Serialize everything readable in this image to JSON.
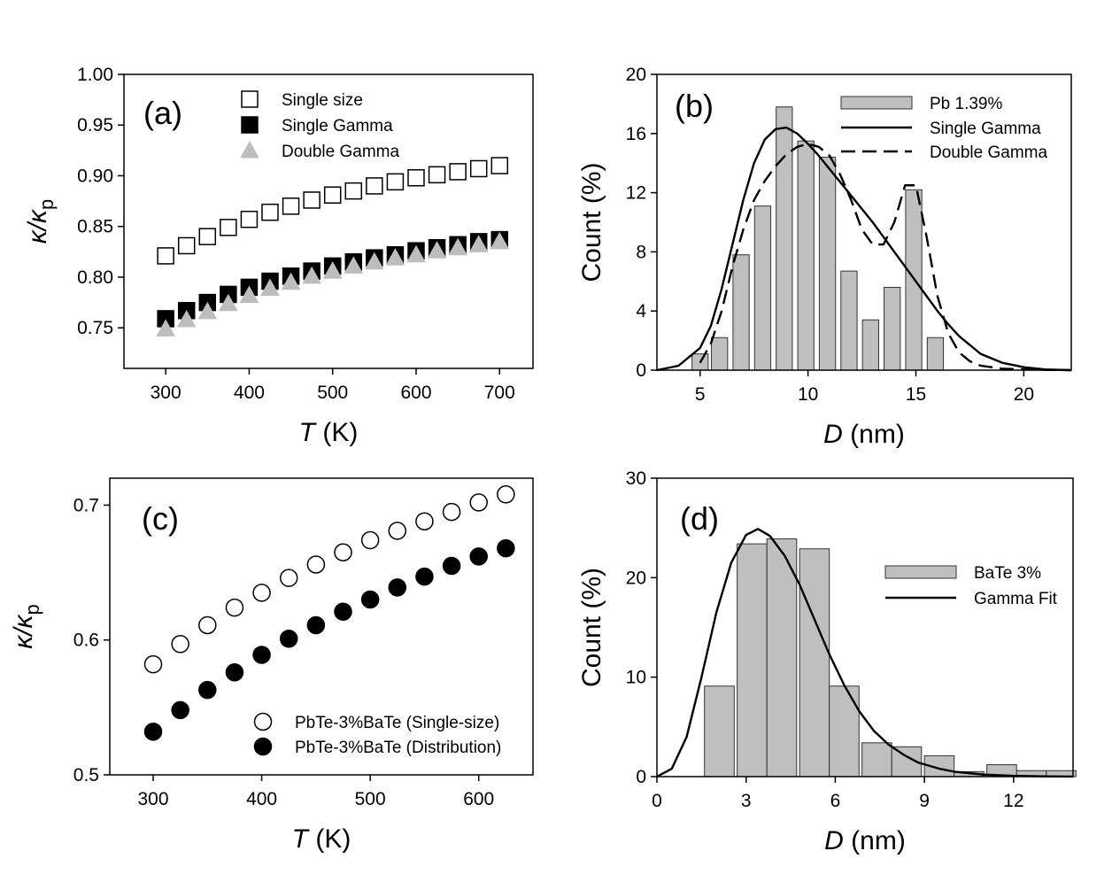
{
  "chart_data": [
    {
      "panel": "a",
      "type": "scatter",
      "panel_label": "(a)",
      "xlabel": {
        "var": "T",
        "unit": " (K)"
      },
      "ylabel": {
        "sym": "κ/κ",
        "sub": "p"
      },
      "xlim": [
        250,
        740
      ],
      "ylim": [
        0.71,
        1.0
      ],
      "xticks": [
        300,
        400,
        500,
        600,
        700
      ],
      "yticks": [
        0.75,
        0.8,
        0.85,
        0.9,
        0.95,
        1.0
      ],
      "ytick_labels": [
        "0.75",
        "0.80",
        "0.85",
        "0.90",
        "0.95",
        "1.00"
      ],
      "legend_position": "top",
      "series": [
        {
          "name": "Single size",
          "marker": "square",
          "fill": "none",
          "stroke": "#000000",
          "x": [
            300,
            325,
            350,
            375,
            400,
            425,
            450,
            475,
            500,
            525,
            550,
            575,
            600,
            625,
            650,
            675,
            700
          ],
          "y": [
            0.821,
            0.831,
            0.84,
            0.849,
            0.857,
            0.864,
            0.87,
            0.876,
            0.881,
            0.885,
            0.89,
            0.894,
            0.898,
            0.901,
            0.904,
            0.907,
            0.91
          ]
        },
        {
          "name": "Single Gamma",
          "marker": "square",
          "fill": "#000000",
          "stroke": "#000000",
          "x": [
            300,
            325,
            350,
            375,
            400,
            425,
            450,
            475,
            500,
            525,
            550,
            575,
            600,
            625,
            650,
            675,
            700
          ],
          "y": [
            0.759,
            0.767,
            0.775,
            0.783,
            0.79,
            0.796,
            0.801,
            0.806,
            0.811,
            0.815,
            0.819,
            0.822,
            0.826,
            0.829,
            0.832,
            0.835,
            0.837
          ]
        },
        {
          "name": "Double Gamma",
          "marker": "triangle",
          "fill": "#bdbdbd",
          "stroke": "#bdbdbd",
          "x": [
            300,
            325,
            350,
            375,
            400,
            425,
            450,
            475,
            500,
            525,
            550,
            575,
            600,
            625,
            650,
            675,
            700
          ],
          "y": [
            0.749,
            0.758,
            0.766,
            0.774,
            0.782,
            0.789,
            0.795,
            0.801,
            0.806,
            0.811,
            0.815,
            0.819,
            0.822,
            0.826,
            0.829,
            0.832,
            0.835
          ]
        }
      ]
    },
    {
      "panel": "b",
      "type": "bar",
      "panel_label": "(b)",
      "xlabel": {
        "var": "D",
        "unit": " (nm)"
      },
      "ylabel": {
        "text": "Count (%)"
      },
      "xlim": [
        3,
        22.2
      ],
      "ylim": [
        0,
        20
      ],
      "xticks": [
        5,
        10,
        15,
        20
      ],
      "yticks": [
        0,
        4,
        8,
        12,
        16,
        20
      ],
      "ytick_labels": [
        "0",
        "4",
        "8",
        "12",
        "16",
        "20"
      ],
      "bar_width": 0.75,
      "legend_position": "top-right",
      "bars": {
        "name": "Pb 1.39%",
        "x": [
          5.0,
          5.9,
          6.9,
          7.9,
          8.9,
          9.9,
          10.9,
          11.9,
          12.9,
          13.9,
          14.9,
          15.9
        ],
        "values": [
          1.1,
          2.2,
          7.8,
          11.1,
          17.8,
          15.5,
          14.4,
          6.7,
          3.4,
          5.6,
          12.2,
          2.2
        ]
      },
      "series": [
        {
          "name": "Single Gamma",
          "style": "solid",
          "x": [
            3,
            4,
            5,
            5.5,
            6,
            6.5,
            7,
            7.5,
            8,
            8.5,
            9,
            9.5,
            10,
            10.5,
            11,
            11.5,
            12,
            12.5,
            13,
            13.5,
            14,
            14.5,
            15,
            15.5,
            16,
            16.5,
            17,
            17.5,
            18,
            19,
            20,
            21,
            22.2
          ],
          "y": [
            0,
            0.3,
            1.5,
            3.0,
            5.5,
            8.5,
            11.5,
            14.0,
            15.6,
            16.3,
            16.4,
            16.0,
            15.3,
            14.5,
            13.6,
            12.7,
            11.8,
            10.9,
            10.0,
            9.0,
            8.0,
            7.0,
            6.0,
            5.0,
            4.0,
            3.1,
            2.3,
            1.7,
            1.1,
            0.5,
            0.2,
            0.05,
            0
          ]
        },
        {
          "name": "Double Gamma",
          "style": "dashed",
          "x": [
            5,
            5.5,
            6,
            6.5,
            7,
            7.5,
            8,
            8.5,
            9,
            9.5,
            10,
            10.5,
            11,
            11.5,
            12,
            12.5,
            13,
            13.5,
            14,
            14.5,
            15,
            15.5,
            16,
            16.5,
            17,
            17.5,
            18,
            19,
            20,
            21,
            22.2
          ],
          "y": [
            0.5,
            1.8,
            4.0,
            7.0,
            9.5,
            11.5,
            12.8,
            13.8,
            14.6,
            15.1,
            15.3,
            15.1,
            14.5,
            13.2,
            11.5,
            9.5,
            8.5,
            8.5,
            10.0,
            12.5,
            12.5,
            9.0,
            5.0,
            2.5,
            1.2,
            0.6,
            0.3,
            0.1,
            0.05,
            0.02,
            0
          ]
        }
      ]
    },
    {
      "panel": "c",
      "type": "scatter",
      "panel_label": "(c)",
      "xlabel": {
        "var": "T",
        "unit": " (K)"
      },
      "ylabel": {
        "sym": "κ/κ",
        "sub": "p"
      },
      "xlim": [
        260,
        650
      ],
      "ylim": [
        0.5,
        0.72
      ],
      "xticks": [
        300,
        400,
        500,
        600
      ],
      "yticks": [
        0.5,
        0.6,
        0.7
      ],
      "ytick_labels": [
        "0.5",
        "0.6",
        "0.7"
      ],
      "legend_position": "bottom-right",
      "series": [
        {
          "name": "PbTe-3%BaTe (Single-size)",
          "marker": "circle",
          "fill": "none",
          "stroke": "#000000",
          "x": [
            300,
            325,
            350,
            375,
            400,
            425,
            450,
            475,
            500,
            525,
            550,
            575,
            600,
            625
          ],
          "y": [
            0.582,
            0.597,
            0.611,
            0.624,
            0.635,
            0.646,
            0.656,
            0.665,
            0.674,
            0.681,
            0.688,
            0.695,
            0.702,
            0.708
          ]
        },
        {
          "name": "PbTe-3%BaTe (Distribution)",
          "marker": "circle",
          "fill": "#000000",
          "stroke": "#000000",
          "x": [
            300,
            325,
            350,
            375,
            400,
            425,
            450,
            475,
            500,
            525,
            550,
            575,
            600,
            625
          ],
          "y": [
            0.532,
            0.548,
            0.563,
            0.576,
            0.589,
            0.601,
            0.611,
            0.621,
            0.63,
            0.639,
            0.647,
            0.655,
            0.662,
            0.668
          ]
        }
      ]
    },
    {
      "panel": "d",
      "type": "bar",
      "panel_label": "(d)",
      "xlabel": {
        "var": "D",
        "unit": " (nm)"
      },
      "ylabel": {
        "text": "Count (%)"
      },
      "xlim": [
        0,
        14
      ],
      "ylim": [
        0,
        30
      ],
      "xticks": [
        0,
        3,
        6,
        9,
        12
      ],
      "yticks": [
        0,
        10,
        20,
        30
      ],
      "ytick_labels": [
        "0",
        "10",
        "20",
        "30"
      ],
      "bar_width": 1.0,
      "legend_position": "top-right",
      "bars": {
        "name": "BaTe 3%",
        "x": [
          2.1,
          3.2,
          4.2,
          5.3,
          6.3,
          7.4,
          8.4,
          9.5,
          10.5,
          11.6,
          12.6,
          13.6
        ],
        "values": [
          9.1,
          23.4,
          23.9,
          22.9,
          9.1,
          3.4,
          3.0,
          2.1,
          0.5,
          1.2,
          0.6,
          0.6
        ]
      },
      "series": [
        {
          "name": "Gamma Fit",
          "style": "solid",
          "x": [
            0,
            0.5,
            1,
            1.5,
            2,
            2.5,
            3,
            3.4,
            3.8,
            4.3,
            4.8,
            5.3,
            5.8,
            6.3,
            6.8,
            7.3,
            7.8,
            8.3,
            8.8,
            9.5,
            10,
            11,
            12,
            13,
            14
          ],
          "y": [
            0,
            0.8,
            4.0,
            10.0,
            16.5,
            21.5,
            24.3,
            24.9,
            24.2,
            22.2,
            19.3,
            15.8,
            12.3,
            9.2,
            6.6,
            4.6,
            3.2,
            2.2,
            1.4,
            0.8,
            0.5,
            0.2,
            0.08,
            0.03,
            0.01
          ]
        }
      ]
    }
  ]
}
